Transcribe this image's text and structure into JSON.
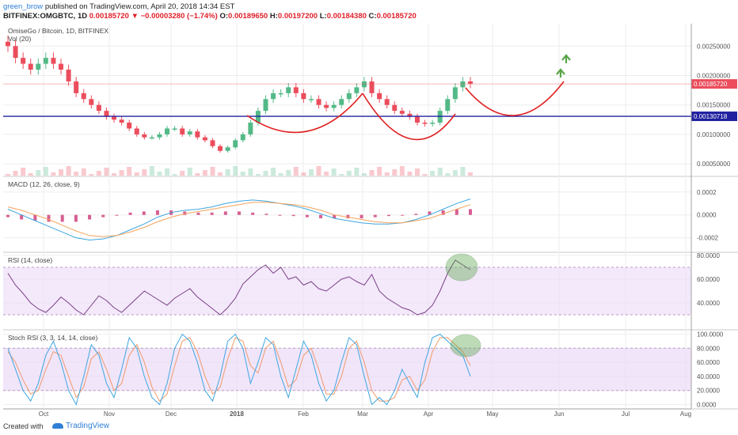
{
  "header": {
    "username": "green_brow",
    "published_text": "published on TradingView.com, April 20, 2018 14:34 EST",
    "symbol": "BITFINEX:OMGBTC, 1D",
    "last": "0.00185720",
    "change": "▼ −0.00003280 (−1.74%)",
    "o_label": "O:",
    "o_value": "0.00189650",
    "h_label": "H:",
    "h_value": "0.00197200",
    "l_label": "L:",
    "l_value": "0.00184380",
    "c_label": "C:",
    "c_value": "0.00185720"
  },
  "footer": {
    "created_with": "Created with",
    "brand": "TradingView"
  },
  "colors": {
    "up": "#53b987",
    "down": "#eb4d5c",
    "macd": "#3ea6e0",
    "signal": "#f5a35c",
    "hist": "#d0427f",
    "rsi": "#7b3f85",
    "stoch_k": "#3ea6e0",
    "stoch_d": "#f09a6a",
    "band": "#ead7f7",
    "annotation": "#e02020",
    "support": "#2020a0",
    "arrow": "#5aa64a"
  },
  "chart_data": [
    {
      "type": "candlestick",
      "title": "OmiseGo / Bitcoin, 1D, BITFINEX",
      "volume_label": "Vol (20)",
      "x_tick_labels": [
        "Oct",
        "Nov",
        "Dec",
        "2018",
        "Feb",
        "Mar",
        "Apr",
        "May",
        "Jun",
        "Jul",
        "Aug"
      ],
      "y_ticks": [
        "0.00250000",
        "0.00200000",
        "0.00150000",
        "0.00100000",
        "0.00050000"
      ],
      "y_tick_values": [
        0.0025,
        0.002,
        0.0015,
        0.001,
        0.0005
      ],
      "ylim": [
        0.0003,
        0.00288
      ],
      "price_tags": [
        {
          "label": "0.00185720",
          "value": 0.0018572,
          "color": "#eb4d5c"
        },
        {
          "label": "0.00130718",
          "value": 0.00130718,
          "color": "#2020a0"
        }
      ],
      "support_level": 0.00130718,
      "close_approx": [
        0.0025,
        0.0023,
        0.0022,
        0.0021,
        0.0022,
        0.0023,
        0.0022,
        0.0021,
        0.0019,
        0.0017,
        0.0016,
        0.0015,
        0.0014,
        0.0013,
        0.00125,
        0.0012,
        0.0011,
        0.001,
        0.00095,
        0.00095,
        0.001,
        0.0011,
        0.0011,
        0.001,
        0.00105,
        0.00095,
        0.0009,
        0.0008,
        0.00072,
        0.00078,
        0.0009,
        0.001,
        0.0012,
        0.0014,
        0.0016,
        0.0017,
        0.0017,
        0.0018,
        0.0017,
        0.0016,
        0.0016,
        0.0015,
        0.00145,
        0.0015,
        0.0016,
        0.0017,
        0.0018,
        0.0019,
        0.0017,
        0.0016,
        0.0015,
        0.0014,
        0.00135,
        0.0013,
        0.0012,
        0.00118,
        0.0012,
        0.0014,
        0.0016,
        0.0018,
        0.0019,
        0.00186
      ]
    },
    {
      "type": "line",
      "title": "MACD (12, 26, close, 9)",
      "y_ticks": [
        "0.0002",
        "0.0000",
        "-0.0002"
      ],
      "y_tick_values": [
        0.0002,
        0.0,
        -0.0002
      ],
      "ylim": [
        -0.00032,
        0.00033
      ],
      "series": [
        {
          "role": "macd",
          "values": [
            5e-05,
            0.0,
            -5e-05,
            -0.0001,
            -0.00015,
            -0.0002,
            -0.00022,
            -0.00021,
            -0.00018,
            -0.00013,
            -8e-05,
            -2e-05,
            2e-05,
            4e-05,
            5e-05,
            7e-05,
            0.0001,
            0.00012,
            0.00013,
            0.00012,
            0.0001,
            8e-05,
            5e-05,
            1e-05,
            -3e-05,
            -5e-05,
            -7e-05,
            -8e-05,
            -8e-05,
            -7e-05,
            -4e-05,
            0.0,
            5e-05,
            0.0001,
            0.00014
          ]
        },
        {
          "role": "signal",
          "values": [
            7e-05,
            4e-05,
            0.0,
            -4e-05,
            -9e-05,
            -0.00014,
            -0.00018,
            -0.00019,
            -0.00018,
            -0.00015,
            -0.00011,
            -6e-05,
            -2e-05,
            1e-05,
            3e-05,
            5e-05,
            7e-05,
            9e-05,
            0.00011,
            0.00011,
            0.0001,
            9e-05,
            7e-05,
            4e-05,
            0.0,
            -2e-05,
            -4e-05,
            -6e-05,
            -7e-05,
            -7e-05,
            -5e-05,
            -3e-05,
            1e-05,
            5e-05,
            9e-05
          ]
        }
      ]
    },
    {
      "type": "line",
      "title": "RSI (14, close)",
      "y_ticks": [
        "80.0000",
        "60.0000",
        "40.0000"
      ],
      "y_tick_values": [
        80,
        60,
        40
      ],
      "ylim": [
        18,
        82
      ],
      "band": [
        30,
        70
      ],
      "values": [
        65,
        55,
        48,
        40,
        35,
        32,
        38,
        45,
        40,
        34,
        30,
        38,
        46,
        42,
        36,
        32,
        38,
        44,
        50,
        46,
        42,
        38,
        44,
        48,
        52,
        45,
        40,
        35,
        30,
        36,
        44,
        56,
        62,
        68,
        72,
        65,
        70,
        60,
        62,
        55,
        58,
        52,
        50,
        55,
        60,
        62,
        58,
        55,
        64,
        50,
        44,
        40,
        36,
        34,
        30,
        32,
        38,
        50,
        65,
        76,
        72,
        68
      ]
    },
    {
      "type": "line",
      "title": "Stoch RSI (3, 3, 14, 14, close)",
      "y_ticks": [
        "100.0000",
        "80.0000",
        "60.0000",
        "40.0000",
        "20.0000",
        "0.0000"
      ],
      "y_tick_values": [
        100,
        80,
        60,
        40,
        20,
        0
      ],
      "ylim": [
        -5,
        105
      ],
      "band": [
        20,
        80
      ],
      "series": [
        {
          "role": "k",
          "values": [
            80,
            50,
            20,
            5,
            30,
            70,
            90,
            60,
            20,
            0,
            40,
            85,
            70,
            30,
            10,
            50,
            95,
            80,
            40,
            10,
            0,
            30,
            80,
            100,
            90,
            60,
            20,
            5,
            40,
            90,
            100,
            80,
            30,
            60,
            95,
            85,
            40,
            10,
            50,
            90,
            70,
            30,
            5,
            20,
            60,
            95,
            85,
            40,
            0,
            10,
            0,
            20,
            50,
            30,
            10,
            60,
            95,
            100,
            90,
            80,
            70,
            40
          ]
        },
        {
          "role": "d",
          "values": [
            75,
            60,
            35,
            15,
            20,
            50,
            75,
            70,
            40,
            10,
            25,
            65,
            75,
            50,
            20,
            30,
            70,
            85,
            60,
            25,
            5,
            15,
            55,
            90,
            95,
            75,
            40,
            15,
            25,
            65,
            95,
            90,
            55,
            45,
            80,
            90,
            60,
            25,
            35,
            70,
            80,
            50,
            15,
            15,
            40,
            80,
            90,
            60,
            20,
            5,
            5,
            10,
            35,
            40,
            20,
            35,
            75,
            95,
            95,
            85,
            75,
            55
          ]
        }
      ]
    }
  ]
}
